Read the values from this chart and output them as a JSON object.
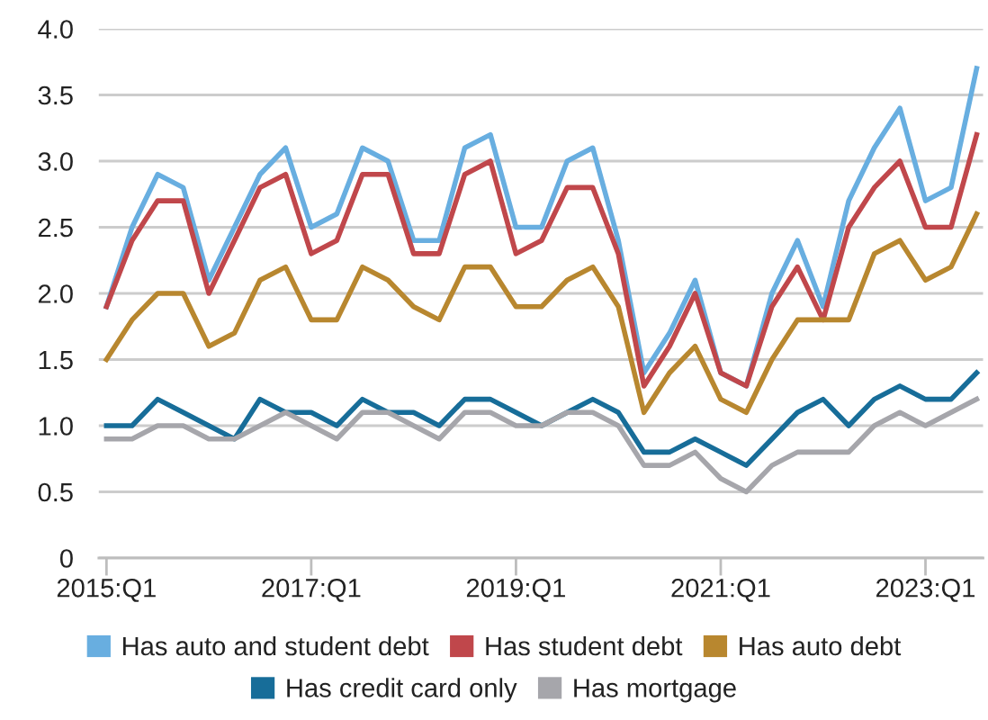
{
  "chart_data": {
    "type": "line",
    "categories": [
      "2015:Q1",
      null,
      null,
      null,
      null,
      null,
      null,
      null,
      "2017:Q1",
      null,
      null,
      null,
      null,
      null,
      null,
      null,
      "2019:Q1",
      null,
      null,
      null,
      null,
      null,
      null,
      null,
      "2021:Q1",
      null,
      null,
      null,
      null,
      null,
      null,
      null,
      "2023:Q1",
      null,
      null
    ],
    "series": [
      {
        "name": "Has auto and student debt",
        "color": "#68aee0",
        "values": [
          1.9,
          2.5,
          2.9,
          2.8,
          2.1,
          2.5,
          2.9,
          3.1,
          2.5,
          2.6,
          3.1,
          3.0,
          2.4,
          2.4,
          3.1,
          3.2,
          2.5,
          2.5,
          3.0,
          3.1,
          2.4,
          1.4,
          1.7,
          2.1,
          1.4,
          1.3,
          2.0,
          2.4,
          1.9,
          2.7,
          3.1,
          3.4,
          2.7,
          2.8,
          3.7
        ]
      },
      {
        "name": "Has student debt",
        "color": "#c0474b",
        "values": [
          1.9,
          2.4,
          2.7,
          2.7,
          2.0,
          2.4,
          2.8,
          2.9,
          2.3,
          2.4,
          2.9,
          2.9,
          2.3,
          2.3,
          2.9,
          3.0,
          2.3,
          2.4,
          2.8,
          2.8,
          2.3,
          1.3,
          1.6,
          2.0,
          1.4,
          1.3,
          1.9,
          2.2,
          1.8,
          2.5,
          2.8,
          3.0,
          2.5,
          2.5,
          3.2
        ]
      },
      {
        "name": "Has auto debt",
        "color": "#b8872f",
        "values": [
          1.5,
          1.8,
          2.0,
          2.0,
          1.6,
          1.7,
          2.1,
          2.2,
          1.8,
          1.8,
          2.2,
          2.1,
          1.9,
          1.8,
          2.2,
          2.2,
          1.9,
          1.9,
          2.1,
          2.2,
          1.9,
          1.1,
          1.4,
          1.6,
          1.2,
          1.1,
          1.5,
          1.8,
          1.8,
          1.8,
          2.3,
          2.4,
          2.1,
          2.2,
          2.6
        ]
      },
      {
        "name": "Has credit card only",
        "color": "#176d99",
        "values": [
          1.0,
          1.0,
          1.2,
          1.1,
          1.0,
          0.9,
          1.2,
          1.1,
          1.1,
          1.0,
          1.2,
          1.1,
          1.1,
          1.0,
          1.2,
          1.2,
          1.1,
          1.0,
          1.1,
          1.2,
          1.1,
          0.8,
          0.8,
          0.9,
          0.8,
          0.7,
          0.9,
          1.1,
          1.2,
          1.0,
          1.2,
          1.3,
          1.2,
          1.2,
          1.4
        ]
      },
      {
        "name": "Has mortgage",
        "color": "#a6a6ab",
        "values": [
          0.9,
          0.9,
          1.0,
          1.0,
          0.9,
          0.9,
          1.0,
          1.1,
          1.0,
          0.9,
          1.1,
          1.1,
          1.0,
          0.9,
          1.1,
          1.1,
          1.0,
          1.0,
          1.1,
          1.1,
          1.0,
          0.7,
          0.7,
          0.8,
          0.6,
          0.5,
          0.7,
          0.8,
          0.8,
          0.8,
          1.0,
          1.1,
          1.0,
          1.1,
          1.2
        ]
      }
    ],
    "ylim": [
      0,
      4
    ],
    "yticks": [
      0,
      0.5,
      {
        "value": 1,
        "label": "1.0"
      },
      1.5,
      {
        "value": 2,
        "label": "2.0"
      },
      2.5,
      {
        "value": 3,
        "label": "3.0"
      },
      3.5,
      {
        "value": 4,
        "label": "4.0"
      }
    ],
    "grid": "y",
    "legend": "bottom",
    "marker": "none",
    "line_style": "solid"
  }
}
